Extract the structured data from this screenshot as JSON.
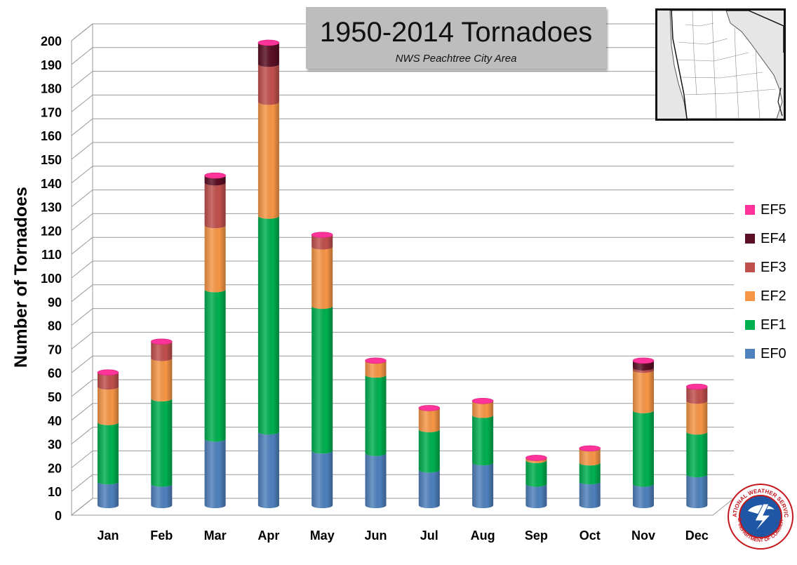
{
  "title": "1950-2014 Tornadoes",
  "subtitle": "NWS Peachtree City Area",
  "logo": {
    "icon": "nws-logo-icon",
    "top_text": "NATIONAL WEATHER SERVICE",
    "bottom_text": "U.S. DEPARTMENT OF COMMERCE"
  },
  "map": {
    "icon": "georgia-county-map-icon"
  },
  "chart_data": {
    "type": "bar",
    "stacked": true,
    "three_d": true,
    "categories": [
      "Jan",
      "Feb",
      "Mar",
      "Apr",
      "May",
      "Jun",
      "Jul",
      "Aug",
      "Sep",
      "Oct",
      "Nov",
      "Dec"
    ],
    "series": [
      {
        "name": "EF0",
        "color": "#4f81bd",
        "values": [
          10,
          9,
          28,
          31,
          23,
          22,
          15,
          18,
          9,
          10,
          9,
          13
        ]
      },
      {
        "name": "EF1",
        "color": "#00b050",
        "values": [
          25,
          36,
          63,
          91,
          61,
          33,
          17,
          20,
          10,
          8,
          31,
          18
        ]
      },
      {
        "name": "EF2",
        "color": "#f79646",
        "values": [
          15,
          17,
          27,
          48,
          25,
          6,
          9,
          6,
          1,
          6,
          17,
          13
        ]
      },
      {
        "name": "EF3",
        "color": "#c0504d",
        "values": [
          6,
          7,
          18,
          16,
          5,
          0,
          0,
          0,
          0,
          0,
          1,
          6
        ]
      },
      {
        "name": "EF4",
        "color": "#5a0f24",
        "values": [
          0,
          0,
          3,
          9,
          0,
          0,
          0,
          0,
          0,
          0,
          3,
          0
        ]
      },
      {
        "name": "EF5",
        "color": "#ff3399",
        "values": [
          0,
          0,
          0,
          0,
          0,
          0,
          0,
          0,
          0,
          0,
          0,
          0
        ]
      }
    ],
    "ylabel": "Number of Tornadoes",
    "xlabel": "",
    "ylim": [
      0,
      200
    ],
    "yticks": [
      0,
      10,
      20,
      30,
      40,
      50,
      60,
      70,
      80,
      90,
      100,
      110,
      120,
      130,
      140,
      150,
      160,
      170,
      180,
      190,
      200
    ],
    "grid": true,
    "legend_position": "right",
    "legend_order": [
      "EF5",
      "EF4",
      "EF3",
      "EF2",
      "EF1",
      "EF0"
    ]
  }
}
